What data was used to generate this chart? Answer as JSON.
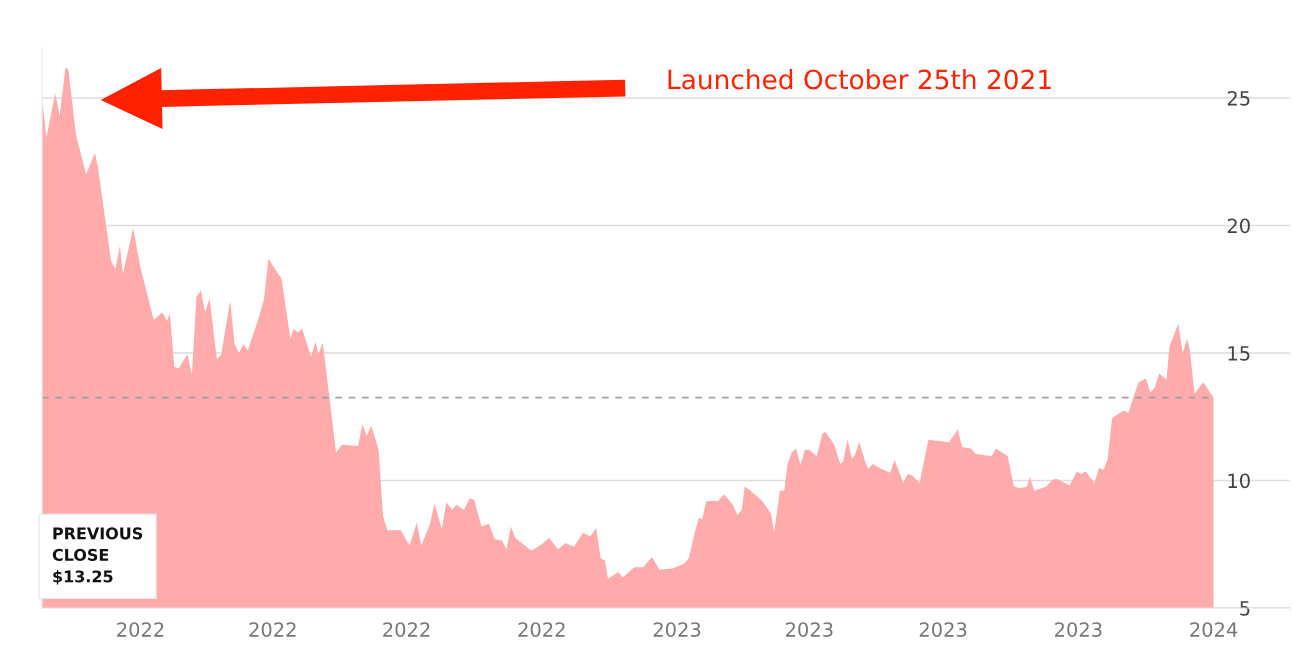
{
  "chart_data": {
    "type": "area",
    "x": [
      "2021-10-26",
      "2021-10-29",
      "2021-11-04",
      "2021-11-07",
      "2021-11-11",
      "2021-11-13",
      "2021-11-18",
      "2021-11-25",
      "2021-12-01",
      "2021-12-03",
      "2021-12-12",
      "2021-12-15",
      "2021-12-18",
      "2021-12-20",
      "2021-12-27",
      "2022-01-01",
      "2022-01-10",
      "2022-01-16",
      "2022-01-19",
      "2022-01-21",
      "2022-01-24",
      "2022-01-27",
      "2022-02-02",
      "2022-02-05",
      "2022-02-08",
      "2022-02-11",
      "2022-02-14",
      "2022-02-17",
      "2022-02-22",
      "2022-02-25",
      "2022-03-03",
      "2022-03-06",
      "2022-03-09",
      "2022-03-12",
      "2022-03-15",
      "2022-03-22",
      "2022-03-26",
      "2022-03-29",
      "2022-04-07",
      "2022-04-13",
      "2022-04-15",
      "2022-04-18",
      "2022-04-21",
      "2022-04-27",
      "2022-04-30",
      "2022-05-02",
      "2022-05-05",
      "2022-05-12",
      "2022-05-14",
      "2022-05-18",
      "2022-05-29",
      "2022-06-01",
      "2022-06-04",
      "2022-06-07",
      "2022-06-12",
      "2022-06-15",
      "2022-06-18",
      "2022-06-27",
      "2022-07-03",
      "2022-07-08",
      "2022-07-11",
      "2022-07-17",
      "2022-07-20",
      "2022-07-25",
      "2022-07-28",
      "2022-08-01",
      "2022-08-04",
      "2022-08-09",
      "2022-08-13",
      "2022-08-16",
      "2022-08-21",
      "2022-08-26",
      "2022-08-30",
      "2022-09-04",
      "2022-09-07",
      "2022-09-10",
      "2022-09-13",
      "2022-09-24",
      "2022-10-01",
      "2022-10-06",
      "2022-10-12",
      "2022-10-17",
      "2022-10-23",
      "2022-10-29",
      "2022-11-03",
      "2022-11-07",
      "2022-11-10",
      "2022-11-13",
      "2022-11-15",
      "2022-11-22",
      "2022-11-25",
      "2022-12-03",
      "2022-12-09",
      "2022-12-15",
      "2022-12-20",
      "2022-12-29",
      "2023-01-06",
      "2023-01-09",
      "2023-01-13",
      "2023-01-16",
      "2023-01-18",
      "2023-01-21",
      "2023-01-29",
      "2023-02-02",
      "2023-02-08",
      "2023-02-11",
      "2023-02-14",
      "2023-02-16",
      "2023-02-19",
      "2023-02-28",
      "2023-03-06",
      "2023-03-08",
      "2023-03-12",
      "2023-03-15",
      "2023-03-17",
      "2023-03-20",
      "2023-03-23",
      "2023-03-26",
      "2023-03-29",
      "2023-04-01",
      "2023-04-06",
      "2023-04-10",
      "2023-04-12",
      "2023-04-18",
      "2023-04-22",
      "2023-04-24",
      "2023-04-27",
      "2023-04-30",
      "2023-05-02",
      "2023-05-05",
      "2023-05-09",
      "2023-05-11",
      "2023-05-14",
      "2023-05-20",
      "2023-05-26",
      "2023-05-29",
      "2023-06-04",
      "2023-06-07",
      "2023-06-10",
      "2023-06-15",
      "2023-06-21",
      "2023-07-05",
      "2023-07-11",
      "2023-07-14",
      "2023-07-20",
      "2023-07-23",
      "2023-08-03",
      "2023-08-06",
      "2023-08-14",
      "2023-08-18",
      "2023-08-21",
      "2023-08-27",
      "2023-08-29",
      "2023-09-01",
      "2023-09-09",
      "2023-09-14",
      "2023-09-17",
      "2023-09-25",
      "2023-09-30",
      "2023-10-03",
      "2023-10-06",
      "2023-10-12",
      "2023-10-15",
      "2023-10-18",
      "2023-10-21",
      "2023-10-24",
      "2023-11-01",
      "2023-11-04",
      "2023-11-08",
      "2023-11-11",
      "2023-11-16",
      "2023-11-19",
      "2023-11-22",
      "2023-11-25",
      "2023-11-30",
      "2023-12-02",
      "2023-12-08",
      "2023-12-11",
      "2023-12-14",
      "2023-12-16",
      "2023-12-19",
      "2023-12-25",
      "2024-01-01"
    ],
    "series": [
      {
        "color": "#ffabab",
        "values": [
          25.0,
          23.45,
          25.2,
          24.3,
          26.2,
          26.1,
          23.6,
          22.0,
          22.85,
          22.3,
          18.6,
          18.3,
          19.2,
          18.1,
          19.9,
          18.35,
          16.3,
          16.6,
          16.25,
          16.55,
          14.45,
          14.4,
          14.95,
          14.15,
          17.2,
          17.45,
          16.6,
          17.15,
          14.75,
          14.95,
          17.05,
          15.35,
          15.0,
          15.35,
          15.1,
          16.3,
          17.1,
          18.7,
          17.9,
          15.55,
          15.95,
          15.8,
          15.95,
          14.85,
          15.45,
          14.95,
          15.4,
          12.1,
          11.1,
          11.4,
          11.35,
          12.2,
          11.75,
          12.15,
          11.2,
          8.6,
          8.05,
          8.05,
          7.45,
          8.35,
          7.45,
          8.3,
          9.1,
          8.1,
          9.15,
          8.85,
          9.05,
          8.85,
          9.3,
          9.25,
          8.2,
          8.3,
          7.7,
          7.65,
          7.3,
          8.2,
          7.75,
          7.25,
          7.5,
          7.75,
          7.3,
          7.55,
          7.4,
          7.95,
          7.8,
          8.15,
          6.95,
          6.85,
          6.15,
          6.4,
          6.2,
          6.6,
          6.6,
          7.0,
          6.5,
          6.55,
          6.75,
          6.95,
          7.95,
          8.55,
          8.45,
          9.2,
          9.2,
          9.45,
          9.05,
          8.65,
          8.85,
          9.75,
          9.65,
          9.2,
          8.7,
          7.95,
          9.6,
          9.6,
          10.6,
          11.1,
          11.25,
          10.6,
          11.2,
          11.2,
          10.95,
          11.85,
          11.9,
          11.4,
          10.65,
          10.75,
          11.6,
          10.85,
          11.0,
          11.5,
          10.75,
          10.45,
          10.65,
          10.45,
          10.3,
          10.8,
          9.9,
          10.25,
          10.2,
          9.9,
          11.6,
          11.5,
          12.0,
          11.3,
          11.25,
          11.05,
          10.95,
          11.25,
          10.95,
          9.8,
          9.7,
          9.75,
          10.15,
          9.6,
          9.75,
          10.05,
          10.05,
          9.8,
          10.35,
          10.25,
          10.35,
          9.9,
          10.5,
          10.4,
          10.85,
          12.45,
          12.75,
          12.65,
          13.35,
          13.85,
          14.0,
          13.45,
          13.65,
          14.2,
          13.95,
          15.25,
          16.15,
          15.0,
          15.55,
          15.1,
          13.4,
          13.85,
          13.25
        ]
      }
    ],
    "xlim": [
      "2021-10-26",
      "2024-02-22"
    ],
    "xticks": [
      {
        "value": "2022-01-01",
        "label": "2022"
      },
      {
        "value": "2022-04-01",
        "label": "2022"
      },
      {
        "value": "2022-07-01",
        "label": "2022"
      },
      {
        "value": "2022-10-01",
        "label": "2022"
      },
      {
        "value": "2023-01-01",
        "label": "2023"
      },
      {
        "value": "2023-04-01",
        "label": "2023"
      },
      {
        "value": "2023-07-01",
        "label": "2023"
      },
      {
        "value": "2023-10-01",
        "label": "2023"
      },
      {
        "value": "2024-01-01",
        "label": "2024"
      }
    ],
    "ylim": [
      5,
      27
    ],
    "yticks": [
      5,
      10,
      15,
      20,
      25
    ],
    "grid": "y",
    "ref_lines": [
      {
        "axis": "y",
        "value": 13.25,
        "color": "#a0a0a0",
        "line_style": "dashed"
      }
    ],
    "annotations": [
      "Launched October 25th 2021",
      "PREVIOUS\nCLOSE\n$13.25"
    ]
  }
}
